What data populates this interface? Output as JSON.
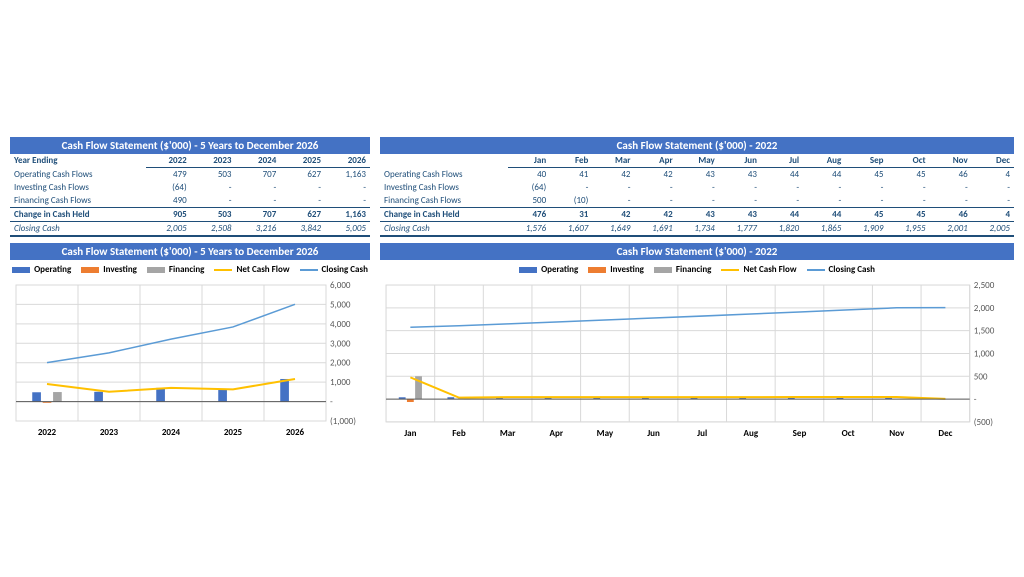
{
  "fiveYear": {
    "tableTitle": "Cash Flow Statement ($'000) - 5 Years to December 2026",
    "yearLabel": "Year Ending",
    "years": [
      "2022",
      "2023",
      "2024",
      "2025",
      "2026"
    ],
    "rows": {
      "operating": {
        "label": "Operating Cash Flows",
        "vals": [
          "479",
          "503",
          "707",
          "627",
          "1,163"
        ]
      },
      "investing": {
        "label": "Investing Cash Flows",
        "vals": [
          "(64)",
          "-",
          "-",
          "-",
          "-"
        ]
      },
      "financing": {
        "label": "Financing Cash Flows",
        "vals": [
          "490",
          "-",
          "-",
          "-",
          "-"
        ]
      },
      "change": {
        "label": "Change in Cash Held",
        "vals": [
          "905",
          "503",
          "707",
          "627",
          "1,163"
        ]
      },
      "closing": {
        "label": "Closing Cash",
        "vals": [
          "2,005",
          "2,508",
          "3,216",
          "3,842",
          "5,005"
        ]
      }
    },
    "chart": {
      "title": "Cash Flow Statement ($'000) - 5 Years to December 2026",
      "categories": [
        "2022",
        "2023",
        "2024",
        "2025",
        "2026"
      ],
      "operating": [
        479,
        503,
        707,
        627,
        1163
      ],
      "investing": [
        -64,
        0,
        0,
        0,
        0
      ],
      "financing": [
        490,
        0,
        0,
        0,
        0
      ],
      "netcash": [
        905,
        503,
        707,
        627,
        1163
      ],
      "closing": [
        2005,
        2508,
        3216,
        3842,
        5005
      ],
      "ymin": -1000,
      "ymax": 6000,
      "ystep": 1000,
      "colors": {
        "operating": "#4472c4",
        "investing": "#ed7d31",
        "financing": "#a5a5a5",
        "netcash": "#ffc000",
        "closing": "#5b9bd5",
        "grid": "#d9d9d9",
        "axis": "#595959",
        "bg": "#ffffff"
      },
      "yTickLabels": [
        "(1,000)",
        "-",
        "1,000",
        "2,000",
        "3,000",
        "4,000",
        "5,000",
        "6,000"
      ]
    }
  },
  "monthly": {
    "tableTitle": "Cash Flow Statement ($'000) - 2022",
    "months": [
      "Jan",
      "Feb",
      "Mar",
      "Apr",
      "May",
      "Jun",
      "Jul",
      "Aug",
      "Sep",
      "Oct",
      "Nov",
      "Dec"
    ],
    "rows": {
      "operating": [
        "40",
        "41",
        "42",
        "42",
        "43",
        "43",
        "44",
        "44",
        "45",
        "45",
        "46",
        "4"
      ],
      "investing": [
        "(64)",
        "-",
        "-",
        "-",
        "-",
        "-",
        "-",
        "-",
        "-",
        "-",
        "-",
        "-"
      ],
      "financing": [
        "500",
        "(10)",
        "-",
        "-",
        "-",
        "-",
        "-",
        "-",
        "-",
        "-",
        "-",
        "-"
      ],
      "change": [
        "476",
        "31",
        "42",
        "42",
        "43",
        "43",
        "44",
        "44",
        "45",
        "45",
        "46",
        "4"
      ],
      "closing": [
        "1,576",
        "1,607",
        "1,649",
        "1,691",
        "1,734",
        "1,777",
        "1,820",
        "1,865",
        "1,909",
        "1,955",
        "2,001",
        "2,005"
      ]
    },
    "chart": {
      "title": "Cash Flow Statement ($'000) - 2022",
      "categories": [
        "Jan",
        "Feb",
        "Mar",
        "Apr",
        "May",
        "Jun",
        "Jul",
        "Aug",
        "Sep",
        "Oct",
        "Nov",
        "Dec"
      ],
      "operating": [
        40,
        41,
        42,
        42,
        43,
        43,
        44,
        44,
        45,
        45,
        46,
        4
      ],
      "investing": [
        -64,
        0,
        0,
        0,
        0,
        0,
        0,
        0,
        0,
        0,
        0,
        0
      ],
      "financing": [
        500,
        -10,
        0,
        0,
        0,
        0,
        0,
        0,
        0,
        0,
        0,
        0
      ],
      "netcash": [
        476,
        31,
        42,
        42,
        43,
        43,
        44,
        44,
        45,
        45,
        46,
        4
      ],
      "closing": [
        1576,
        1607,
        1649,
        1691,
        1734,
        1777,
        1820,
        1865,
        1909,
        1955,
        2001,
        2005
      ],
      "ymin": -500,
      "ymax": 2500,
      "ystep": 500,
      "yTickLabels": [
        "(500)",
        "-",
        "500",
        "1,000",
        "1,500",
        "2,000",
        "2,500"
      ]
    }
  },
  "legend": {
    "operating": "Operating",
    "investing": "Investing",
    "financing": "Financing",
    "netcash": "Net Cash Flow",
    "closing": "Closing Cash"
  },
  "colors": {
    "operating": "#4472c4",
    "investing": "#ed7d31",
    "financing": "#a5a5a5",
    "netcash": "#ffc000",
    "closing": "#5b9bd5",
    "grid": "#d9d9d9",
    "axis": "#595959"
  }
}
